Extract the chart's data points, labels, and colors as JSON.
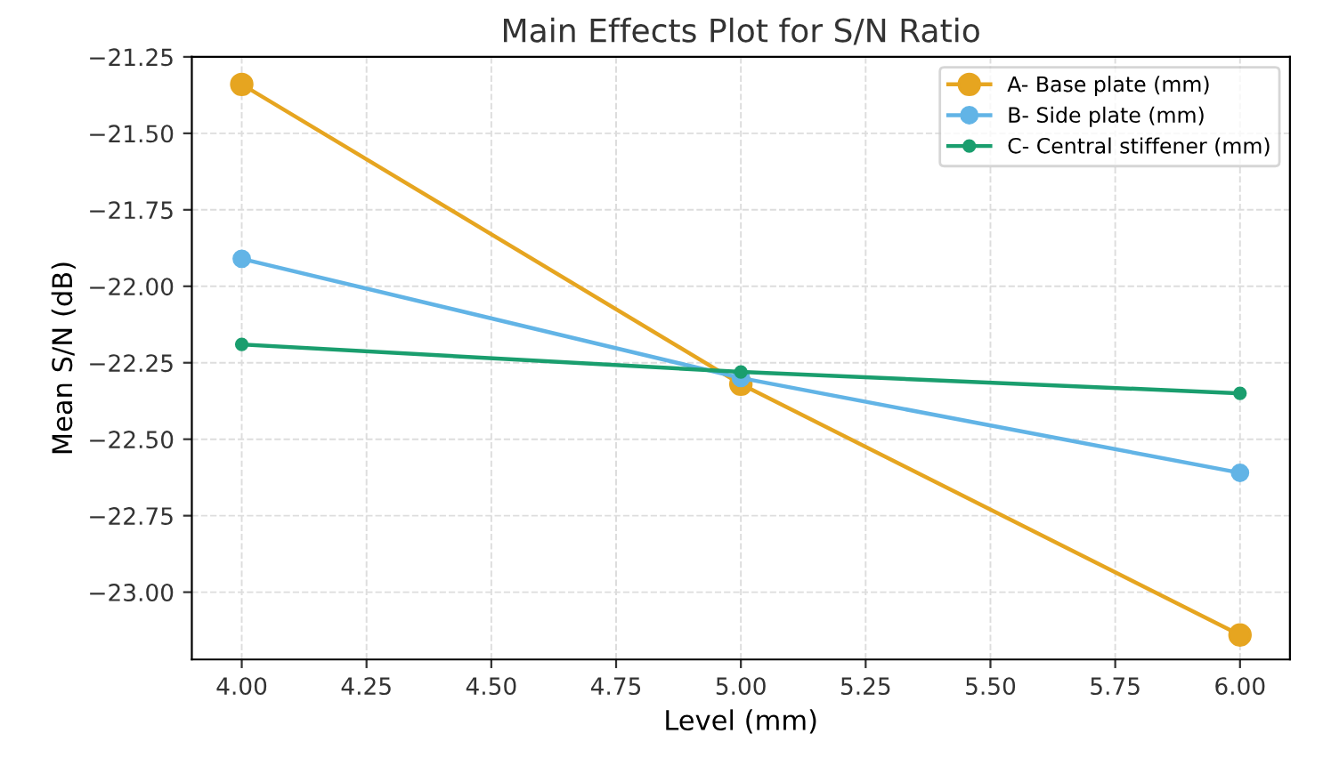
{
  "chart_data": {
    "type": "line",
    "title": "Main Effects Plot for S/N Ratio",
    "xlabel": "Level (mm)",
    "ylabel": "Mean S/N (dB)",
    "x": [
      4.0,
      5.0,
      6.0
    ],
    "series": [
      {
        "name": "A- Base plate (mm)",
        "color": "#e6a520",
        "values": [
          -21.34,
          -22.32,
          -23.14
        ]
      },
      {
        "name": "B- Side plate (mm)",
        "color": "#62b4e6",
        "values": [
          -21.91,
          -22.3,
          -22.61
        ]
      },
      {
        "name": "C- Central stiffener (mm)",
        "color": "#1a9e6e",
        "values": [
          -22.19,
          -22.28,
          -22.35
        ]
      }
    ],
    "xlim": [
      3.9,
      6.1
    ],
    "xticks": [
      {
        "value": 4.0,
        "label": "4.00"
      },
      {
        "value": 4.25,
        "label": "4.25"
      },
      {
        "value": 4.5,
        "label": "4.50"
      },
      {
        "value": 4.75,
        "label": "4.75"
      },
      {
        "value": 5.0,
        "label": "5.00"
      },
      {
        "value": 5.25,
        "label": "5.25"
      },
      {
        "value": 5.5,
        "label": "5.50"
      },
      {
        "value": 5.75,
        "label": "5.75"
      },
      {
        "value": 6.0,
        "label": "6.00"
      }
    ],
    "ylim": [
      -23.22,
      -21.25
    ],
    "yticks": [
      {
        "value": -21.25,
        "label": "−21.25"
      },
      {
        "value": -21.5,
        "label": "−21.50"
      },
      {
        "value": -21.75,
        "label": "−21.75"
      },
      {
        "value": -22.0,
        "label": "−22.00"
      },
      {
        "value": -22.25,
        "label": "−22.25"
      },
      {
        "value": -22.5,
        "label": "−22.50"
      },
      {
        "value": -22.75,
        "label": "−22.75"
      },
      {
        "value": -23.0,
        "label": "−23.00"
      }
    ],
    "grid": true,
    "legend": "top right",
    "marker": "circle",
    "line_style": "solid"
  }
}
